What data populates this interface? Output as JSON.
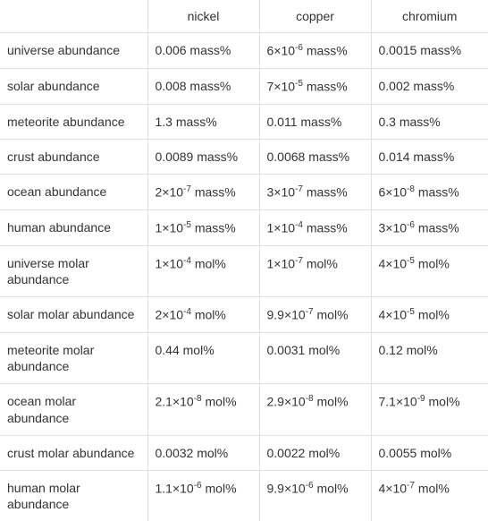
{
  "table": {
    "columns": [
      "",
      "nickel",
      "copper",
      "chromium"
    ],
    "rows": [
      {
        "label": "universe abundance",
        "nickel": "0.006 mass%",
        "copper": "6×10⁻⁶ mass%",
        "chromium": "0.0015 mass%"
      },
      {
        "label": "solar abundance",
        "nickel": "0.008 mass%",
        "copper": "7×10⁻⁵ mass%",
        "chromium": "0.002 mass%"
      },
      {
        "label": "meteorite abundance",
        "nickel": "1.3 mass%",
        "copper": "0.011 mass%",
        "chromium": "0.3 mass%"
      },
      {
        "label": "crust abundance",
        "nickel": "0.0089 mass%",
        "copper": "0.0068 mass%",
        "chromium": "0.014 mass%"
      },
      {
        "label": "ocean abundance",
        "nickel": "2×10⁻⁷ mass%",
        "copper": "3×10⁻⁷ mass%",
        "chromium": "6×10⁻⁸ mass%"
      },
      {
        "label": "human abundance",
        "nickel": "1×10⁻⁵ mass%",
        "copper": "1×10⁻⁴ mass%",
        "chromium": "3×10⁻⁶ mass%"
      },
      {
        "label": "universe molar abundance",
        "nickel": "1×10⁻⁴ mol%",
        "copper": "1×10⁻⁷ mol%",
        "chromium": "4×10⁻⁵ mol%"
      },
      {
        "label": "solar molar abundance",
        "nickel": "2×10⁻⁴ mol%",
        "copper": "9.9×10⁻⁷ mol%",
        "chromium": "4×10⁻⁵ mol%"
      },
      {
        "label": "meteorite molar abundance",
        "nickel": "0.44 mol%",
        "copper": "0.0031 mol%",
        "chromium": "0.12 mol%"
      },
      {
        "label": "ocean molar abundance",
        "nickel": "2.1×10⁻⁸ mol%",
        "copper": "2.9×10⁻⁸ mol%",
        "chromium": "7.1×10⁻⁹ mol%"
      },
      {
        "label": "crust molar abundance",
        "nickel": "0.0032 mol%",
        "copper": "0.0022 mol%",
        "chromium": "0.0055 mol%"
      },
      {
        "label": "human molar abundance",
        "nickel": "1.1×10⁻⁶ mol%",
        "copper": "9.9×10⁻⁶ mol%",
        "chromium": "4×10⁻⁷ mol%"
      }
    ],
    "border_color": "#e0e0e0",
    "text_color": "#333333",
    "background_color": "#ffffff",
    "font_size": 14
  }
}
